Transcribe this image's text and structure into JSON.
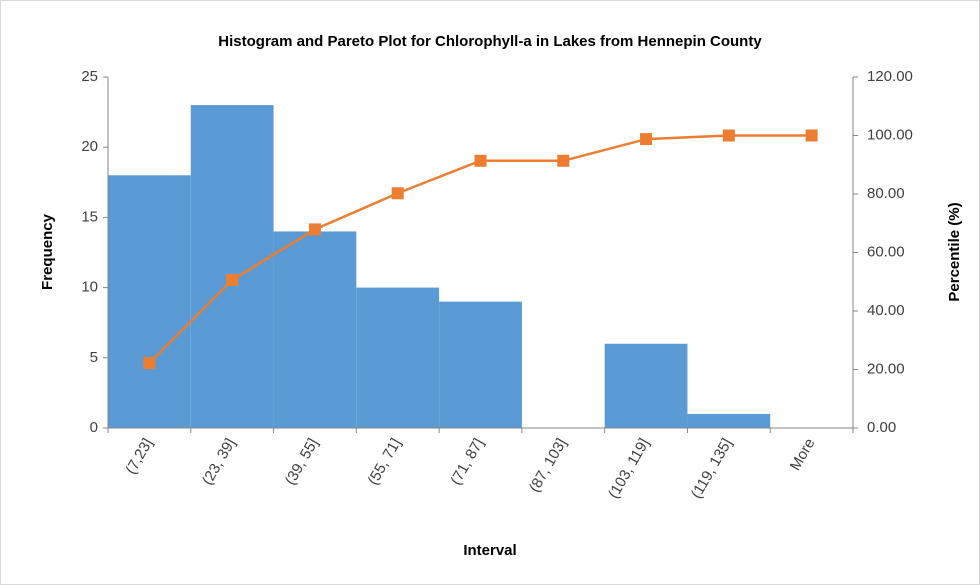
{
  "chart_data": {
    "type": "bar",
    "title": "Histogram and Pareto Plot for Chlorophyll-a in Lakes from Hennepin County",
    "x_label": "Interval",
    "y_label": "Frequency",
    "y2_label": "Percentile (%)",
    "categories": [
      "(7,23]",
      "(23, 39]",
      "(39, 55]",
      "(55, 71]",
      "(71, 87]",
      "(87, 103]",
      "(103, 119]",
      "(119, 135]",
      "More"
    ],
    "series": [
      {
        "type": "bar",
        "color": "#5b9bd5",
        "values": [
          18,
          23,
          14,
          10,
          9,
          0,
          6,
          1,
          0
        ]
      },
      {
        "type": "line",
        "color": "#ed7d31",
        "axis": "y2",
        "values": [
          22.22,
          50.62,
          67.9,
          80.25,
          91.36,
          91.36,
          98.77,
          100,
          100
        ]
      }
    ],
    "ylim": [
      0,
      25
    ],
    "yticks": [
      0,
      5,
      10,
      15,
      20,
      25
    ],
    "y2lim": [
      0,
      120
    ],
    "y2ticks": [
      {
        "value": 0,
        "label": "0.00"
      },
      {
        "value": 20,
        "label": "20.00"
      },
      {
        "value": 40,
        "label": "40.00"
      },
      {
        "value": 60,
        "label": "60.00"
      },
      {
        "value": 80,
        "label": "80.00"
      },
      {
        "value": 100,
        "label": "100.00"
      },
      {
        "value": 120,
        "label": "120.00"
      }
    ],
    "grid": false
  }
}
